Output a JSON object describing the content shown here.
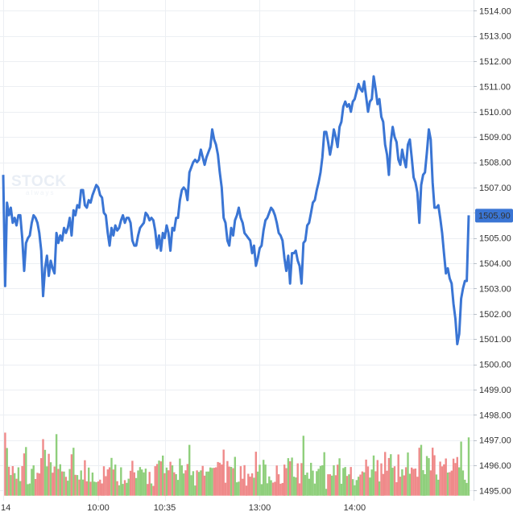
{
  "watermark": {
    "main": "STOCK",
    "sub": "always"
  },
  "colors": {
    "line": "#3a75d4",
    "last_price_bg": "#3a75d4",
    "last_price_text": "#ffffff",
    "volume_up": "#8fcf7c",
    "volume_down": "#ef8a8a",
    "grid": "#eceff3",
    "axis_text": "#333333"
  },
  "chart_data": {
    "type": "line",
    "title": "",
    "xlabel": "",
    "ylabel": "",
    "ylim": [
      1494.6,
      1514.2
    ],
    "y_ticks": [
      1514,
      1513,
      1512,
      1511,
      1510,
      1509,
      1508,
      1507,
      1506,
      1505,
      1504,
      1503,
      1502,
      1501,
      1500,
      1499,
      1498,
      1497,
      1496,
      1495
    ],
    "y_tick_labels": [
      "1514.00",
      "1513.00",
      "1512.00",
      "1511.00",
      "1510.00",
      "1509.00",
      "1508.00",
      "1507.00",
      "1506.00",
      "1505.00",
      "1504.00",
      "1503.00",
      "1502.00",
      "1501.00",
      "1500.00",
      "1499.00",
      "1498.00",
      "1497.00",
      "1496.00",
      "1495.00"
    ],
    "x_labels": [
      {
        "label": "14",
        "index": 0
      },
      {
        "label": "10:00",
        "index": 50
      },
      {
        "label": "10:35",
        "index": 85
      },
      {
        "label": "13:00",
        "index": 135
      },
      {
        "label": "14:00",
        "index": 185
      }
    ],
    "last_price": "1505.90",
    "series": [
      {
        "values": [
          1507.5,
          1503.1,
          1506.4,
          1505.9,
          1506.2,
          1505.6,
          1505.8,
          1505.5,
          1505.9,
          1505.9,
          1505.0,
          1503.7,
          1504.8,
          1505.0,
          1505.1,
          1505.6,
          1505.9,
          1505.8,
          1505.6,
          1505.2,
          1504.5,
          1502.7,
          1503.8,
          1504.3,
          1503.5,
          1504.1,
          1503.8,
          1503.6,
          1505.2,
          1504.8,
          1505.1,
          1504.9,
          1505.4,
          1505.2,
          1505.4,
          1505.8,
          1505.1,
          1506.1,
          1505.9,
          1506.3,
          1506.2,
          1506.9,
          1506.9,
          1506.3,
          1506.2,
          1506.5,
          1506.4,
          1506.7,
          1506.9,
          1507.1,
          1507.0,
          1506.7,
          1506.6,
          1506.0,
          1505.9,
          1505.2,
          1504.7,
          1505.4,
          1505.1,
          1505.5,
          1505.3,
          1505.4,
          1505.7,
          1505.9,
          1505.6,
          1505.8,
          1505.8,
          1505.6,
          1504.9,
          1504.7,
          1504.7,
          1505.1,
          1505.4,
          1505.5,
          1505.6,
          1506.0,
          1505.9,
          1505.7,
          1505.8,
          1505.7,
          1505.3,
          1504.6,
          1505.1,
          1504.5,
          1505.2,
          1505.0,
          1505.5,
          1505.2,
          1504.5,
          1505.4,
          1505.3,
          1505.8,
          1505.8,
          1506.5,
          1506.9,
          1507.0,
          1506.9,
          1506.5,
          1507.6,
          1507.8,
          1508.0,
          1508.1,
          1508.0,
          1508.1,
          1508.5,
          1508.2,
          1507.9,
          1508.2,
          1508.4,
          1508.6,
          1509.3,
          1508.9,
          1508.7,
          1508.3,
          1507.6,
          1507.0,
          1505.8,
          1505.6,
          1504.9,
          1504.7,
          1505.4,
          1505.1,
          1505.7,
          1505.9,
          1506.2,
          1505.8,
          1505.6,
          1505.2,
          1505.1,
          1505.0,
          1504.9,
          1504.4,
          1504.7,
          1503.9,
          1504.2,
          1504.6,
          1504.7,
          1505.3,
          1505.7,
          1505.8,
          1506.0,
          1506.2,
          1506.1,
          1505.9,
          1505.6,
          1505.2,
          1505.1,
          1504.9,
          1504.2,
          1503.7,
          1504.3,
          1503.2,
          1504.4,
          1504.4,
          1504.5,
          1504.1,
          1503.9,
          1503.2,
          1504.8,
          1504.9,
          1505.5,
          1505.6,
          1506.0,
          1506.4,
          1506.5,
          1506.9,
          1507.2,
          1507.6,
          1508.2,
          1509.2,
          1509.2,
          1508.8,
          1508.3,
          1508.7,
          1509.3,
          1509.0,
          1508.6,
          1509.4,
          1509.6,
          1510.2,
          1510.4,
          1510.2,
          1510.3,
          1510.0,
          1510.4,
          1510.5,
          1510.8,
          1511.1,
          1510.9,
          1510.8,
          1511.2,
          1510.6,
          1510.0,
          1510.4,
          1510.5,
          1511.4,
          1510.9,
          1510.3,
          1510.5,
          1509.8,
          1509.6,
          1508.7,
          1508.3,
          1507.5,
          1508.8,
          1509.4,
          1509.0,
          1508.8,
          1508.1,
          1507.9,
          1508.5,
          1508.1,
          1507.8,
          1508.7,
          1508.9,
          1508.2,
          1507.4,
          1507.2,
          1506.8,
          1505.6,
          1507.1,
          1507.5,
          1507.6,
          1508.4,
          1509.3,
          1508.9,
          1507.2,
          1506.2,
          1506.2,
          1506.3,
          1505.8,
          1505.2,
          1504.4,
          1503.6,
          1503.8,
          1503.4,
          1503.2,
          1502.4,
          1501.8,
          1500.8,
          1501.2,
          1502.6,
          1503.0,
          1503.3,
          1503.3,
          1505.9
        ]
      }
    ],
    "volume": [
      {
        "v": 1496.0,
        "up": true
      }
    ]
  }
}
